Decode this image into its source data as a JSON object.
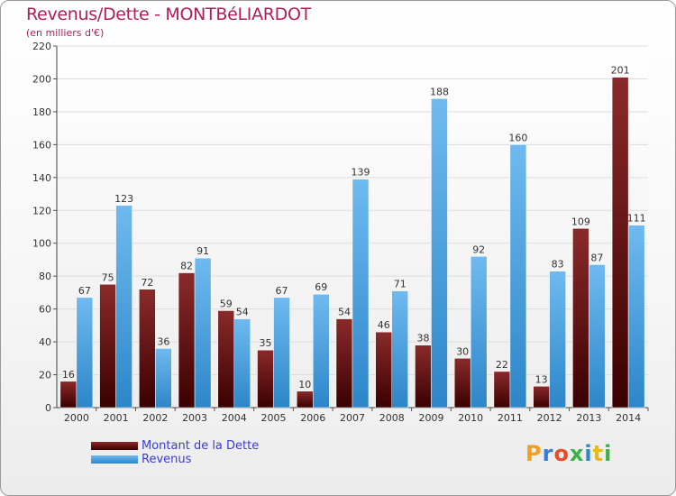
{
  "header": {
    "title": "Revenus/Dette - MONTBéLIARDOT",
    "subtitle": "(en milliers d'€)"
  },
  "legend": {
    "items": [
      {
        "label": "Montant de la Dette"
      },
      {
        "label": "Revenus"
      }
    ]
  },
  "logo": {
    "letters": [
      "P",
      "r",
      "o",
      "x",
      "i",
      "t",
      "i"
    ],
    "colors": [
      "#f0a020",
      "#3a7bd5",
      "#e84d2a",
      "#3cb04a",
      "#2d86c8",
      "#e8b820",
      "#3cb04a"
    ]
  },
  "chart_data": {
    "type": "bar",
    "categories": [
      "2000",
      "2001",
      "2002",
      "2003",
      "2004",
      "2005",
      "2006",
      "2007",
      "2008",
      "2009",
      "2010",
      "2011",
      "2012",
      "2013",
      "2014"
    ],
    "series": [
      {
        "name": "Montant de la Dette",
        "color": "#6e1414",
        "values": [
          16,
          75,
          72,
          82,
          59,
          35,
          10,
          54,
          46,
          38,
          30,
          22,
          13,
          109,
          201
        ]
      },
      {
        "name": "Revenus",
        "color": "#4aa3e6",
        "values": [
          67,
          123,
          36,
          91,
          54,
          67,
          69,
          139,
          71,
          188,
          92,
          160,
          83,
          87,
          111
        ]
      }
    ],
    "yticks": [
      0,
      20,
      40,
      60,
      80,
      100,
      120,
      140,
      160,
      180,
      200,
      220
    ],
    "ylim": [
      0,
      220
    ],
    "grid": true
  }
}
